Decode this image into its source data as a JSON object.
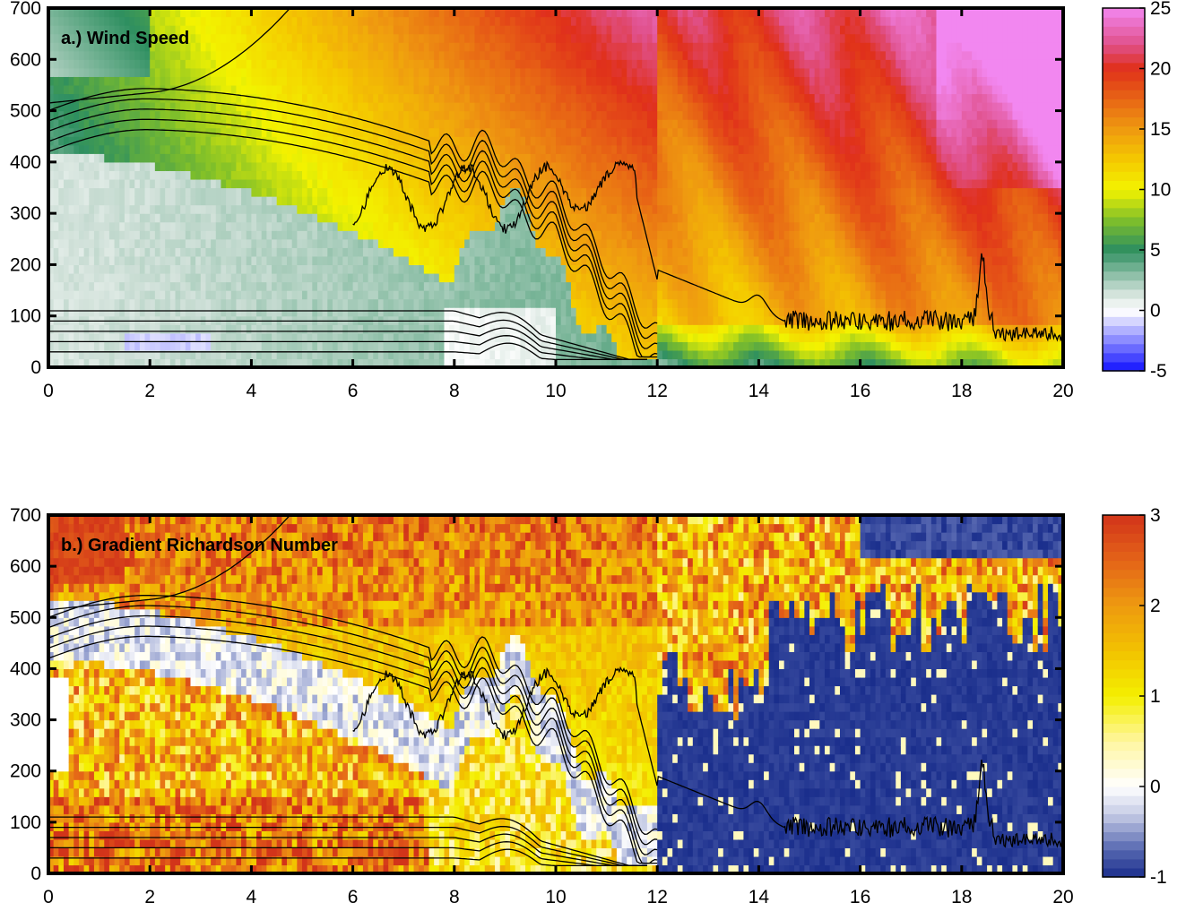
{
  "chart_data": [
    {
      "type": "heatmap",
      "title": "a.) Wind Speed",
      "xlim": [
        0,
        20
      ],
      "ylim": [
        0,
        700
      ],
      "xticks": [
        "0",
        "2",
        "4",
        "6",
        "8",
        "10",
        "12",
        "14",
        "16",
        "18",
        "20"
      ],
      "yticks": [
        "0",
        "100",
        "200",
        "300",
        "400",
        "500",
        "600",
        "700"
      ],
      "colorbar": {
        "min": -5,
        "max": 25,
        "ticks": [
          "-5",
          "0",
          "5",
          "10",
          "15",
          "20",
          "25"
        ],
        "stops": [
          [
            -5,
            "#1010ff"
          ],
          [
            0,
            "#ffffff"
          ],
          [
            1.5,
            "#cfe0d8"
          ],
          [
            5,
            "#2e8f60"
          ],
          [
            7.5,
            "#7fbf2a"
          ],
          [
            10,
            "#f3f300"
          ],
          [
            12.5,
            "#f4c800"
          ],
          [
            15,
            "#ef9a10"
          ],
          [
            20,
            "#e0301a"
          ],
          [
            22,
            "#e0508a"
          ],
          [
            25,
            "#f287f0"
          ]
        ]
      },
      "field_description": "surface-to-700m wind speed; weak near-zero winds in the lower-left, strengthening toward upper-right with core values above 20 after hour 16"
    },
    {
      "type": "heatmap",
      "title": "b.) Gradient Richardson Number",
      "xlim": [
        0,
        20
      ],
      "ylim": [
        0,
        700
      ],
      "xticks": [
        "0",
        "2",
        "4",
        "6",
        "8",
        "10",
        "12",
        "14",
        "16",
        "18",
        "20"
      ],
      "yticks": [
        "0",
        "100",
        "200",
        "300",
        "400",
        "500",
        "600",
        "700"
      ],
      "colorbar": {
        "min": -1,
        "max": 3,
        "ticks": [
          "-1",
          "0",
          "1",
          "2",
          "3"
        ],
        "stops": [
          [
            -1,
            "#1a2e8c"
          ],
          [
            -0.7,
            "#5566b0"
          ],
          [
            -0.3,
            "#c7cde6"
          ],
          [
            0,
            "#ffffff"
          ],
          [
            0.5,
            "#fff6a0"
          ],
          [
            1,
            "#f4ef00"
          ],
          [
            1.5,
            "#f2c200"
          ],
          [
            2,
            "#ee9a10"
          ],
          [
            2.5,
            "#e46418"
          ],
          [
            3,
            "#d2341a"
          ]
        ]
      }
    }
  ]
}
